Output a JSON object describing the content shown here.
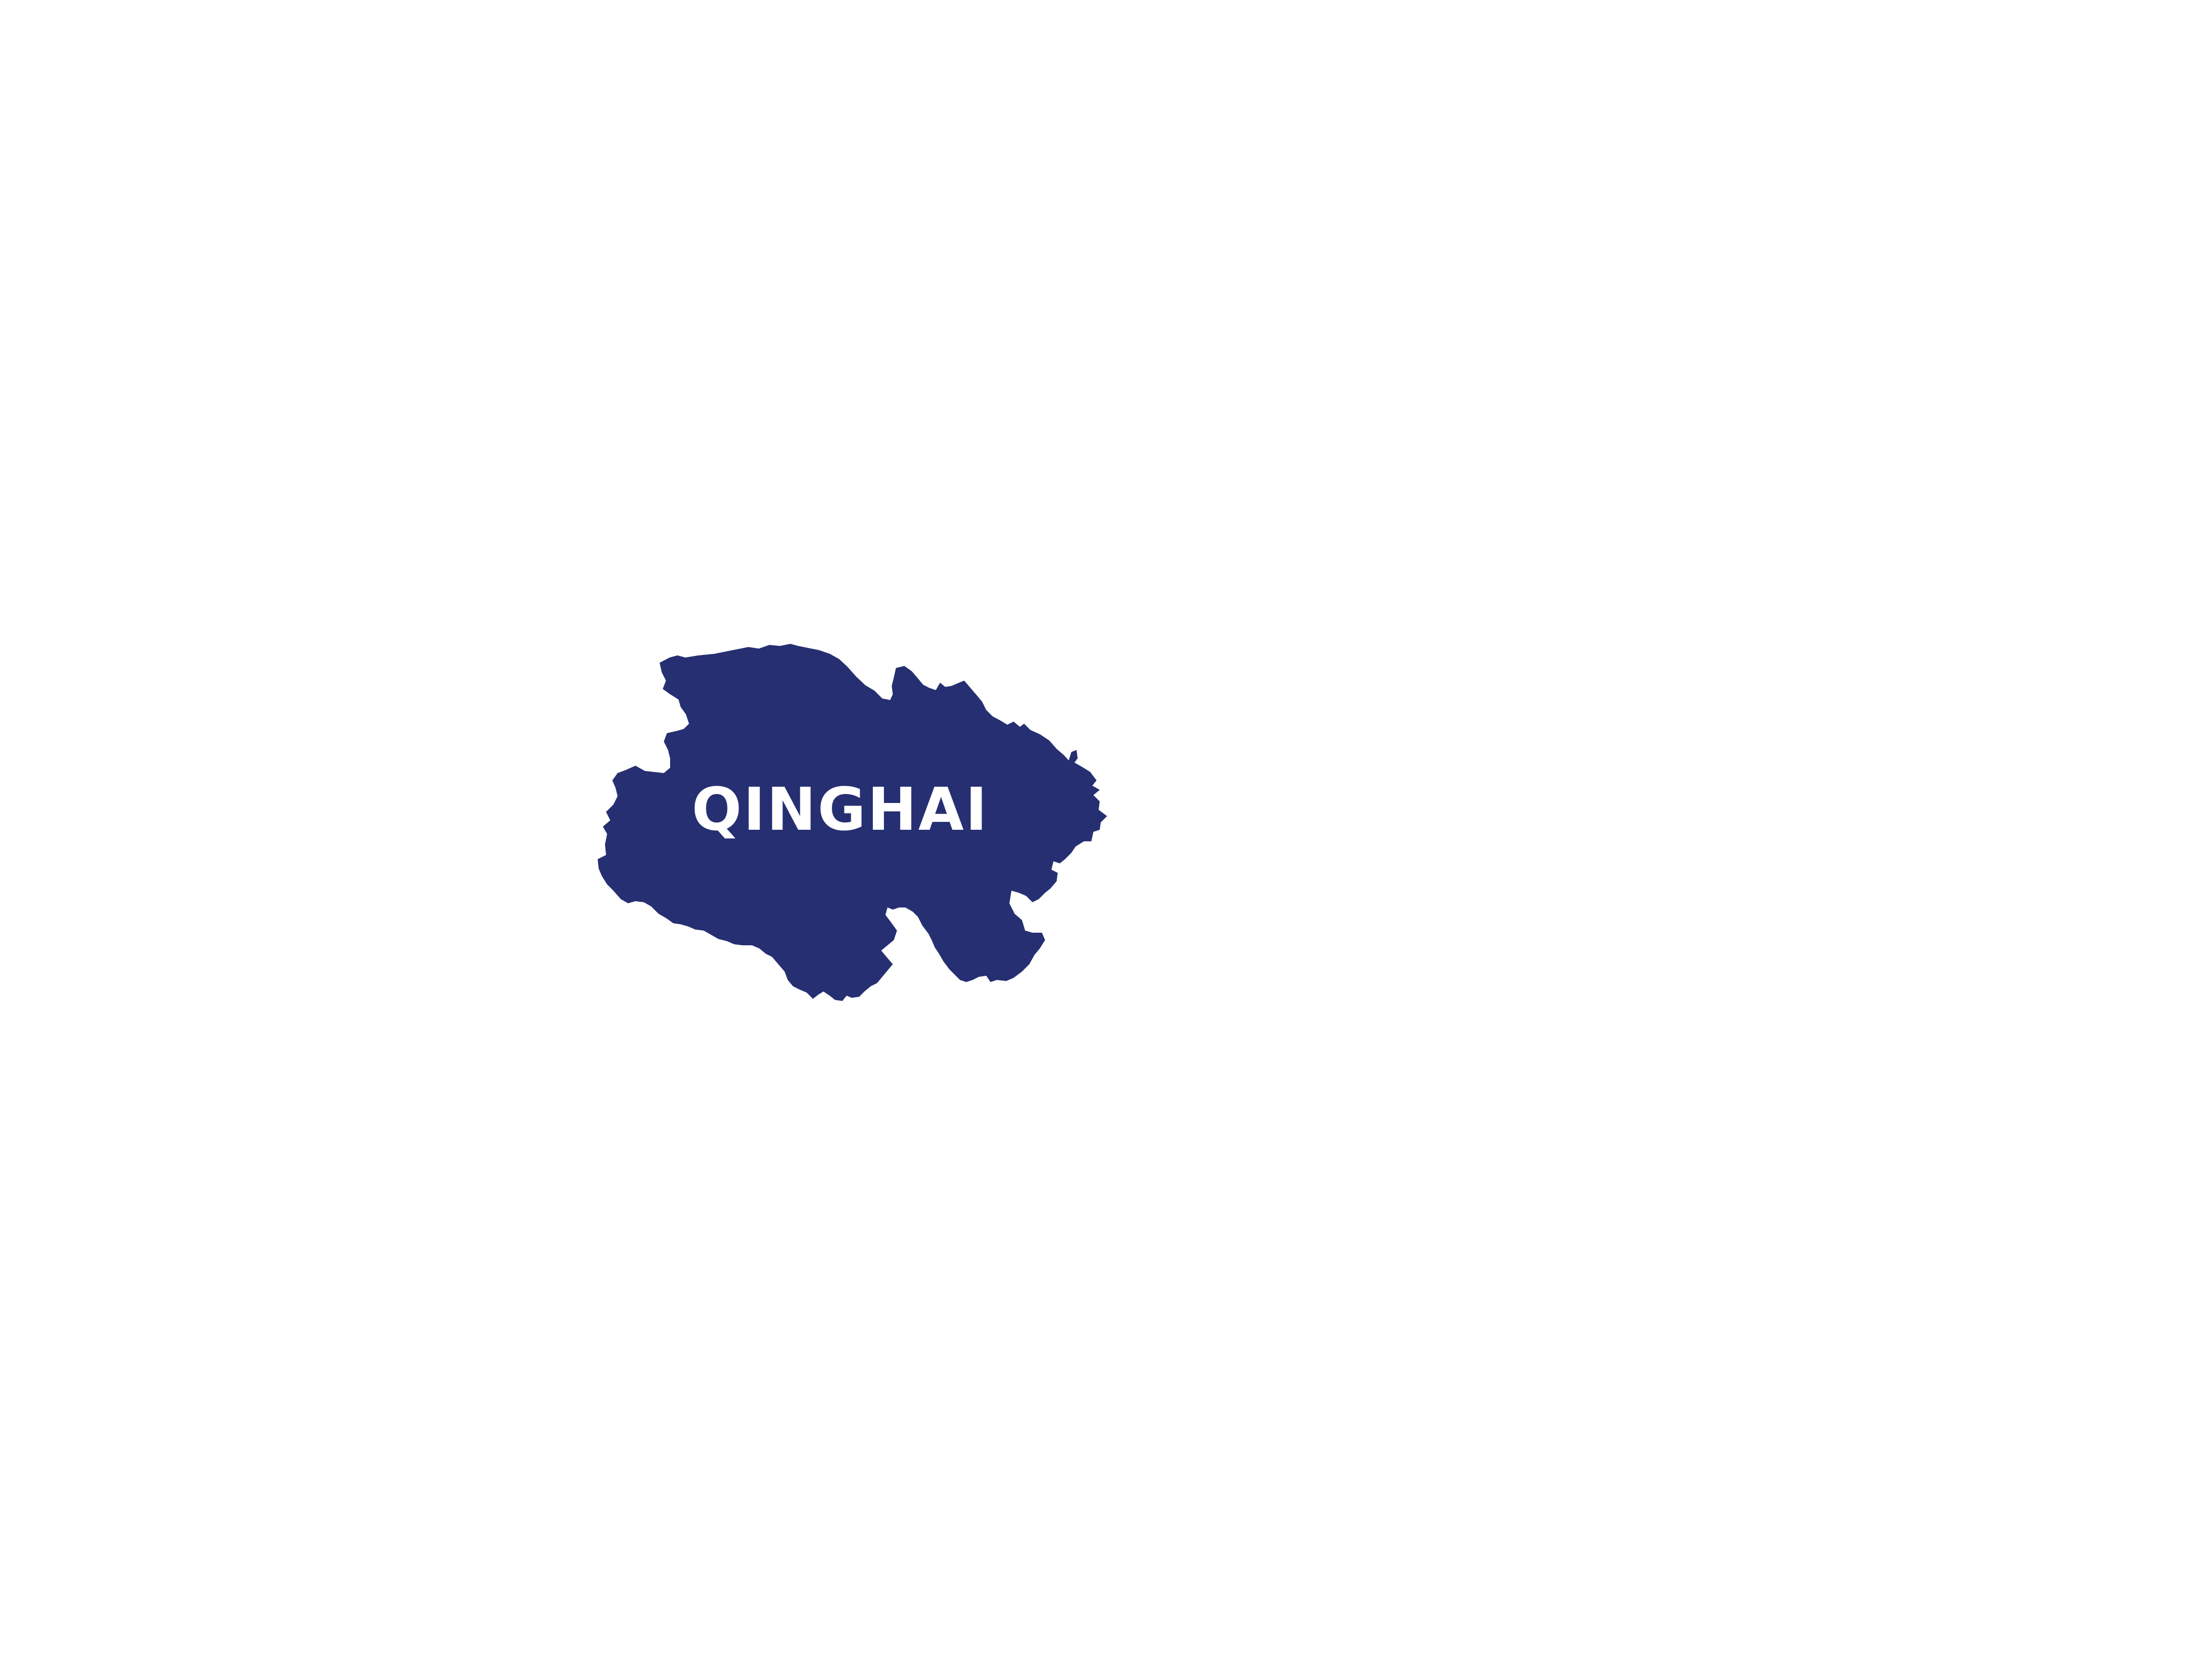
{
  "map": {
    "region": {
      "name": "QINGHAI",
      "fill_color": "#262F72",
      "label_color": "#FFFFFF"
    },
    "background_color": "#FFFFFF"
  }
}
